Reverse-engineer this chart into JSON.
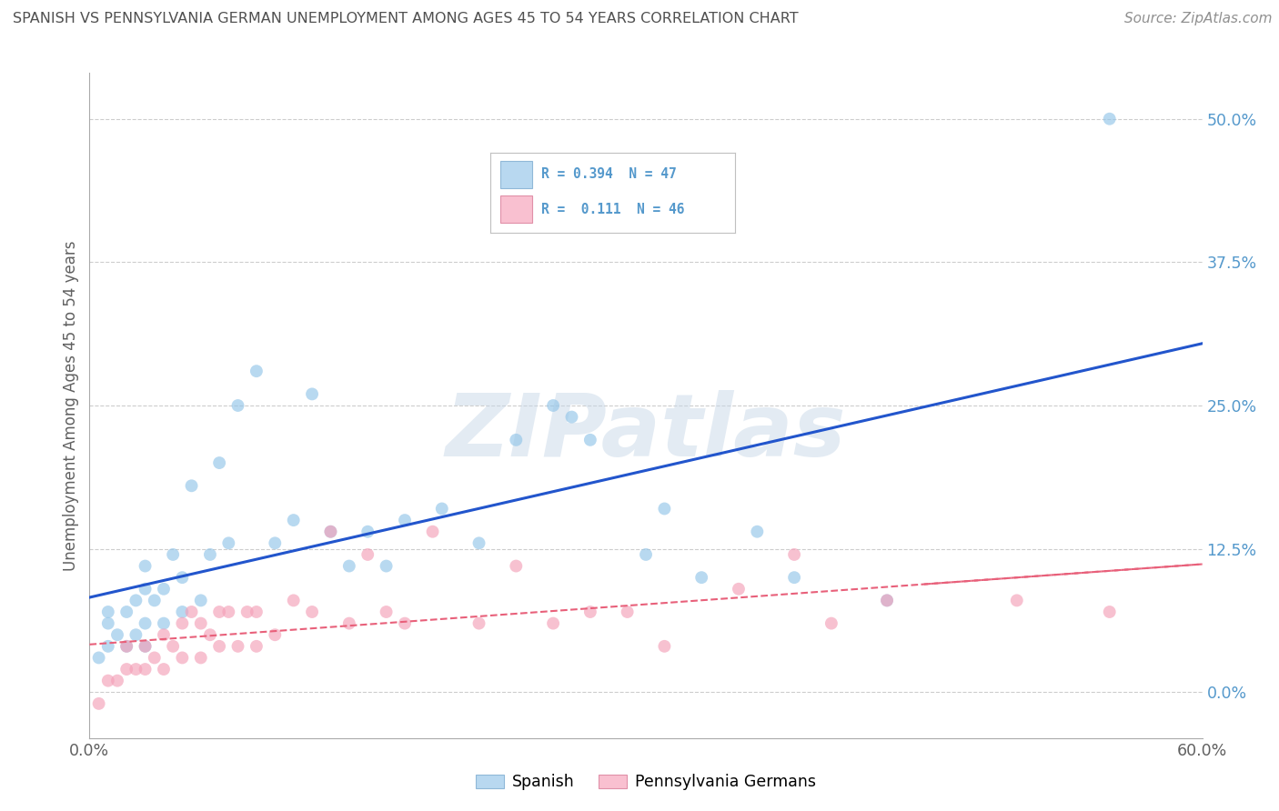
{
  "title": "SPANISH VS PENNSYLVANIA GERMAN UNEMPLOYMENT AMONG AGES 45 TO 54 YEARS CORRELATION CHART",
  "source": "Source: ZipAtlas.com",
  "ylabel": "Unemployment Among Ages 45 to 54 years",
  "xlim": [
    0.0,
    0.6
  ],
  "ylim": [
    -0.04,
    0.54
  ],
  "ytick_labels": [
    "0.0%",
    "12.5%",
    "25.0%",
    "37.5%",
    "50.0%"
  ],
  "ytick_values": [
    0.0,
    0.125,
    0.25,
    0.375,
    0.5
  ],
  "R_spanish": 0.394,
  "N_spanish": 47,
  "R_pagerman": 0.111,
  "N_pagerman": 46,
  "blue_color": "#93c5e8",
  "pink_color": "#f4a0b8",
  "blue_legend_color": "#b8d8f0",
  "pink_legend_color": "#f9c0d0",
  "line_blue": "#2255cc",
  "line_pink": "#e8607a",
  "background_color": "#ffffff",
  "grid_color": "#c8c8c8",
  "title_color": "#505050",
  "ytick_color": "#5599cc",
  "spanish_x": [
    0.005,
    0.01,
    0.01,
    0.01,
    0.015,
    0.02,
    0.02,
    0.025,
    0.025,
    0.03,
    0.03,
    0.03,
    0.03,
    0.035,
    0.04,
    0.04,
    0.045,
    0.05,
    0.05,
    0.055,
    0.06,
    0.065,
    0.07,
    0.075,
    0.08,
    0.09,
    0.1,
    0.11,
    0.12,
    0.13,
    0.14,
    0.15,
    0.16,
    0.17,
    0.19,
    0.21,
    0.23,
    0.25,
    0.26,
    0.27,
    0.3,
    0.31,
    0.33,
    0.36,
    0.38,
    0.43,
    0.55
  ],
  "spanish_y": [
    0.03,
    0.04,
    0.06,
    0.07,
    0.05,
    0.04,
    0.07,
    0.05,
    0.08,
    0.04,
    0.06,
    0.09,
    0.11,
    0.08,
    0.06,
    0.09,
    0.12,
    0.07,
    0.1,
    0.18,
    0.08,
    0.12,
    0.2,
    0.13,
    0.25,
    0.28,
    0.13,
    0.15,
    0.26,
    0.14,
    0.11,
    0.14,
    0.11,
    0.15,
    0.16,
    0.13,
    0.22,
    0.25,
    0.24,
    0.22,
    0.12,
    0.16,
    0.1,
    0.14,
    0.1,
    0.08,
    0.5
  ],
  "pagerman_x": [
    0.005,
    0.01,
    0.015,
    0.02,
    0.02,
    0.025,
    0.03,
    0.03,
    0.035,
    0.04,
    0.04,
    0.045,
    0.05,
    0.05,
    0.055,
    0.06,
    0.06,
    0.065,
    0.07,
    0.07,
    0.075,
    0.08,
    0.085,
    0.09,
    0.09,
    0.1,
    0.11,
    0.12,
    0.13,
    0.14,
    0.15,
    0.16,
    0.17,
    0.185,
    0.21,
    0.23,
    0.25,
    0.27,
    0.29,
    0.31,
    0.35,
    0.38,
    0.4,
    0.43,
    0.5,
    0.55
  ],
  "pagerman_y": [
    -0.01,
    0.01,
    0.01,
    0.02,
    0.04,
    0.02,
    0.02,
    0.04,
    0.03,
    0.02,
    0.05,
    0.04,
    0.03,
    0.06,
    0.07,
    0.03,
    0.06,
    0.05,
    0.04,
    0.07,
    0.07,
    0.04,
    0.07,
    0.04,
    0.07,
    0.05,
    0.08,
    0.07,
    0.14,
    0.06,
    0.12,
    0.07,
    0.06,
    0.14,
    0.06,
    0.11,
    0.06,
    0.07,
    0.07,
    0.04,
    0.09,
    0.12,
    0.06,
    0.08,
    0.08,
    0.07
  ],
  "watermark_text": "ZIPatlas",
  "watermark_color": "#c8d8e8",
  "watermark_alpha": 0.5
}
